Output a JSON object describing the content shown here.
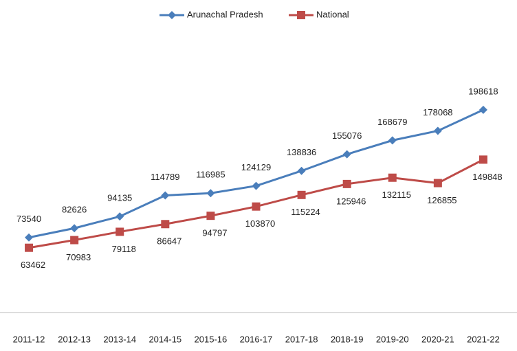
{
  "chart_data": {
    "type": "line",
    "categories": [
      "2011-12",
      "2012-13",
      "2013-14",
      "2014-15",
      "2015-16",
      "2016-17",
      "2017-18",
      "2018-19",
      "2019-20",
      "2020-21",
      "2021-22"
    ],
    "series": [
      {
        "name": "Arunachal Pradesh",
        "color": "#4a7ebb",
        "values": [
          73540,
          82626,
          94135,
          114789,
          116985,
          124129,
          138836,
          155076,
          168679,
          178068,
          198618
        ]
      },
      {
        "name": "National",
        "color": "#be4b48",
        "values": [
          63462,
          70983,
          79118,
          86647,
          94797,
          103870,
          115224,
          125946,
          132115,
          126855,
          149848
        ]
      }
    ],
    "ylim": [
      0,
      280000
    ],
    "legend": "top"
  }
}
